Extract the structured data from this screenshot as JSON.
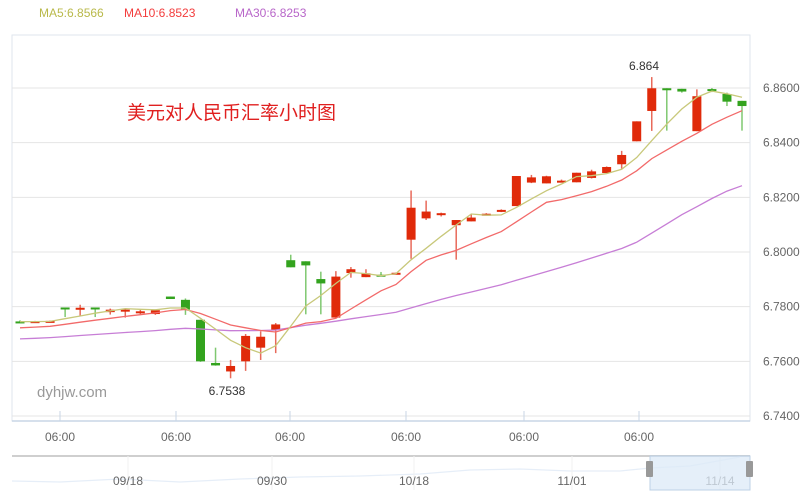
{
  "legend": {
    "ma5": {
      "label": "MA5:6.8566",
      "color": "#b9b94a"
    },
    "ma10": {
      "label": "MA10:6.8523",
      "color": "#f33c3c"
    },
    "ma30": {
      "label": "MA30:6.8253",
      "color": "#b866c9"
    }
  },
  "title": "美元对人民币汇率小时图",
  "watermark": "dyhjw.com",
  "annotations": {
    "max_label": "6.864",
    "min_label": "6.7538"
  },
  "x_axis_labels": [
    "06:00",
    "06:00",
    "06:00",
    "06:00",
    "06:00",
    "06:00"
  ],
  "y_axis_labels": [
    "6.8600",
    "6.8400",
    "6.8200",
    "6.8000",
    "6.7800",
    "6.7600",
    "6.7400"
  ],
  "navigator": {
    "labels": [
      "09/18",
      "09/30",
      "10/18",
      "11/01",
      "11/14"
    ]
  },
  "colors": {
    "up": "#e02a0a",
    "down": "#33a31e",
    "grid": "#e4e4e4",
    "axis": "#c8d6e6",
    "nav_fill": "#dce9f7"
  },
  "chart_data": {
    "type": "candlestick",
    "title": "美元对人民币汇率小时图",
    "xlabel": "",
    "ylabel": "",
    "ylim": [
      6.74,
      6.865
    ],
    "x_ticks": [
      "06:00",
      "06:00",
      "06:00",
      "06:00",
      "06:00",
      "06:00"
    ],
    "y_ticks": [
      6.74,
      6.76,
      6.78,
      6.8,
      6.82,
      6.84,
      6.86
    ],
    "series": [
      {
        "name": "candles",
        "ohlc": [
          [
            6.7746,
            6.7745,
            6.775,
            6.7742
          ],
          [
            6.7744,
            6.7747,
            6.7748,
            6.7743
          ],
          [
            6.7746,
            6.7748,
            6.7749,
            6.7745
          ],
          [
            6.7797,
            6.7794,
            6.7797,
            6.7762
          ],
          [
            6.779,
            6.7796,
            6.7807,
            6.7766
          ],
          [
            6.7797,
            6.7795,
            6.7797,
            6.7762
          ],
          [
            6.778,
            6.7789,
            6.7793,
            6.7771
          ],
          [
            6.7787,
            6.7789,
            6.7791,
            6.776
          ],
          [
            6.7776,
            6.7783,
            6.7788,
            6.7773
          ],
          [
            6.7773,
            6.7787,
            6.779,
            6.777
          ],
          [
            6.7837,
            6.7828,
            6.7837,
            6.7828
          ],
          [
            6.7825,
            6.7789,
            6.783,
            6.777
          ],
          [
            6.7752,
            6.76,
            6.7752,
            6.7598
          ],
          [
            6.7594,
            6.7585,
            6.765,
            6.7584
          ],
          [
            6.7563,
            6.7583,
            6.7605,
            6.7538
          ],
          [
            6.76,
            6.7693,
            6.77,
            6.7565
          ],
          [
            6.765,
            6.769,
            6.771,
            6.7605
          ],
          [
            6.7715,
            6.7735,
            6.774,
            6.763
          ],
          [
            6.797,
            6.7944,
            6.799,
            6.7944
          ],
          [
            6.7966,
            6.7951,
            6.7966,
            6.7772
          ],
          [
            6.7901,
            6.7885,
            6.7928,
            6.7772
          ],
          [
            6.776,
            6.791,
            6.793,
            6.776
          ],
          [
            6.7923,
            6.7937,
            6.7945,
            6.7906
          ],
          [
            6.7908,
            6.7922,
            6.7937,
            6.7908
          ],
          [
            6.7917,
            6.7912,
            6.7927,
            6.7912
          ],
          [
            6.7918,
            6.7924,
            6.7924,
            6.7918
          ],
          [
            6.8045,
            6.8162,
            6.8225,
            6.7975
          ],
          [
            6.8123,
            6.8148,
            6.8188,
            6.8117
          ],
          [
            6.8142,
            6.8142,
            6.8144,
            6.813
          ],
          [
            6.8098,
            6.8117,
            6.8117,
            6.7972
          ],
          [
            6.8112,
            6.8126,
            6.814,
            6.8112
          ],
          [
            6.8136,
            6.814,
            6.8142,
            6.8136
          ],
          [
            6.8152,
            6.8154,
            6.8156,
            6.8146
          ],
          [
            6.8168,
            6.8278,
            6.8278,
            6.8168
          ],
          [
            6.8254,
            6.8273,
            6.8282,
            6.8252
          ],
          [
            6.8251,
            6.8277,
            6.8279,
            6.8251
          ],
          [
            6.826,
            6.8261,
            6.8265,
            6.8258
          ],
          [
            6.8255,
            6.829,
            6.829,
            6.8255
          ],
          [
            6.8271,
            6.8295,
            6.8301,
            6.8269
          ],
          [
            6.8289,
            6.8311,
            6.8313,
            6.8289
          ],
          [
            6.8321,
            6.8355,
            6.837,
            6.8305
          ],
          [
            6.8405,
            6.8478,
            6.8478,
            6.8405
          ],
          [
            6.8516,
            6.8599,
            6.864,
            6.8443
          ],
          [
            6.8599,
            6.8597,
            6.8599,
            6.8444
          ],
          [
            6.8597,
            6.8587,
            6.8597,
            6.8583
          ],
          [
            6.8442,
            6.857,
            6.8595,
            6.8442
          ],
          [
            6.8596,
            6.859,
            6.86,
            6.8585
          ],
          [
            6.8578,
            6.855,
            6.8583,
            6.8534
          ],
          [
            6.8553,
            6.8534,
            6.8553,
            6.8444
          ]
        ]
      },
      {
        "name": "MA5",
        "color": "#c8c87a",
        "last": 6.8566
      },
      {
        "name": "MA10",
        "color": "#f26a6a",
        "last": 6.8523
      },
      {
        "name": "MA30",
        "color": "#c77ed6",
        "last": 6.8253
      }
    ],
    "annotations": [
      {
        "text": "6.864",
        "type": "max"
      },
      {
        "text": "6.7538",
        "type": "min"
      }
    ],
    "legend_position": "top",
    "grid": true
  }
}
